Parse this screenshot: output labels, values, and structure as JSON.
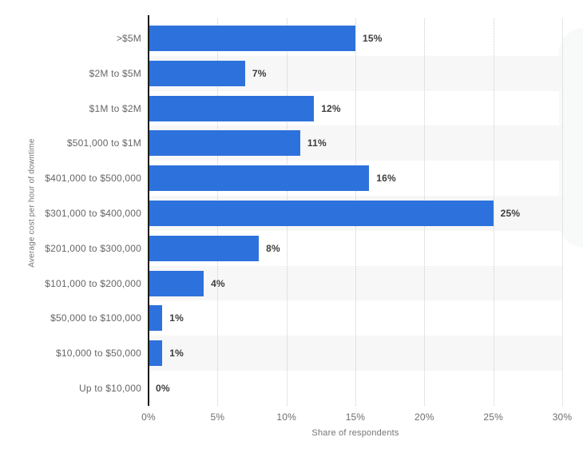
{
  "chart_data": {
    "type": "bar",
    "orientation": "horizontal",
    "categories": [
      ">$5M",
      "$2M to $5M",
      "$1M to $2M",
      "$501,000 to $1M",
      "$401,000 to $500,000",
      "$301,000 to $400,000",
      "$201,000 to $300,000",
      "$101,000 to $200,000",
      "$50,000 to $100,000",
      "$10,000 to $50,000",
      "Up to $10,000"
    ],
    "values": [
      15,
      7,
      12,
      11,
      16,
      25,
      8,
      4,
      1,
      1,
      0
    ],
    "value_labels": [
      "15%",
      "7%",
      "12%",
      "11%",
      "16%",
      "25%",
      "8%",
      "4%",
      "1%",
      "1%",
      "0%"
    ],
    "xlabel": "Share of respondents",
    "ylabel": "Average cost per hour of downtime",
    "xlim": [
      0,
      30
    ],
    "x_tick_values": [
      0,
      5,
      10,
      15,
      20,
      25,
      30
    ],
    "x_tick_labels": [
      "0%",
      "5%",
      "10%",
      "15%",
      "20%",
      "25%",
      "30%"
    ],
    "grid": "vertical-dotted",
    "legend": "none",
    "colors": {
      "bar": "#2d72dc",
      "stripe": "#f7f7f7",
      "gridline": "#cccccc",
      "axis_line": "#1a1a1a",
      "value_label": "#3d3d3d",
      "category_label": "#666666",
      "tick_label": "#6e6e6e",
      "axis_title": "#757575",
      "background": "#ffffff"
    }
  }
}
